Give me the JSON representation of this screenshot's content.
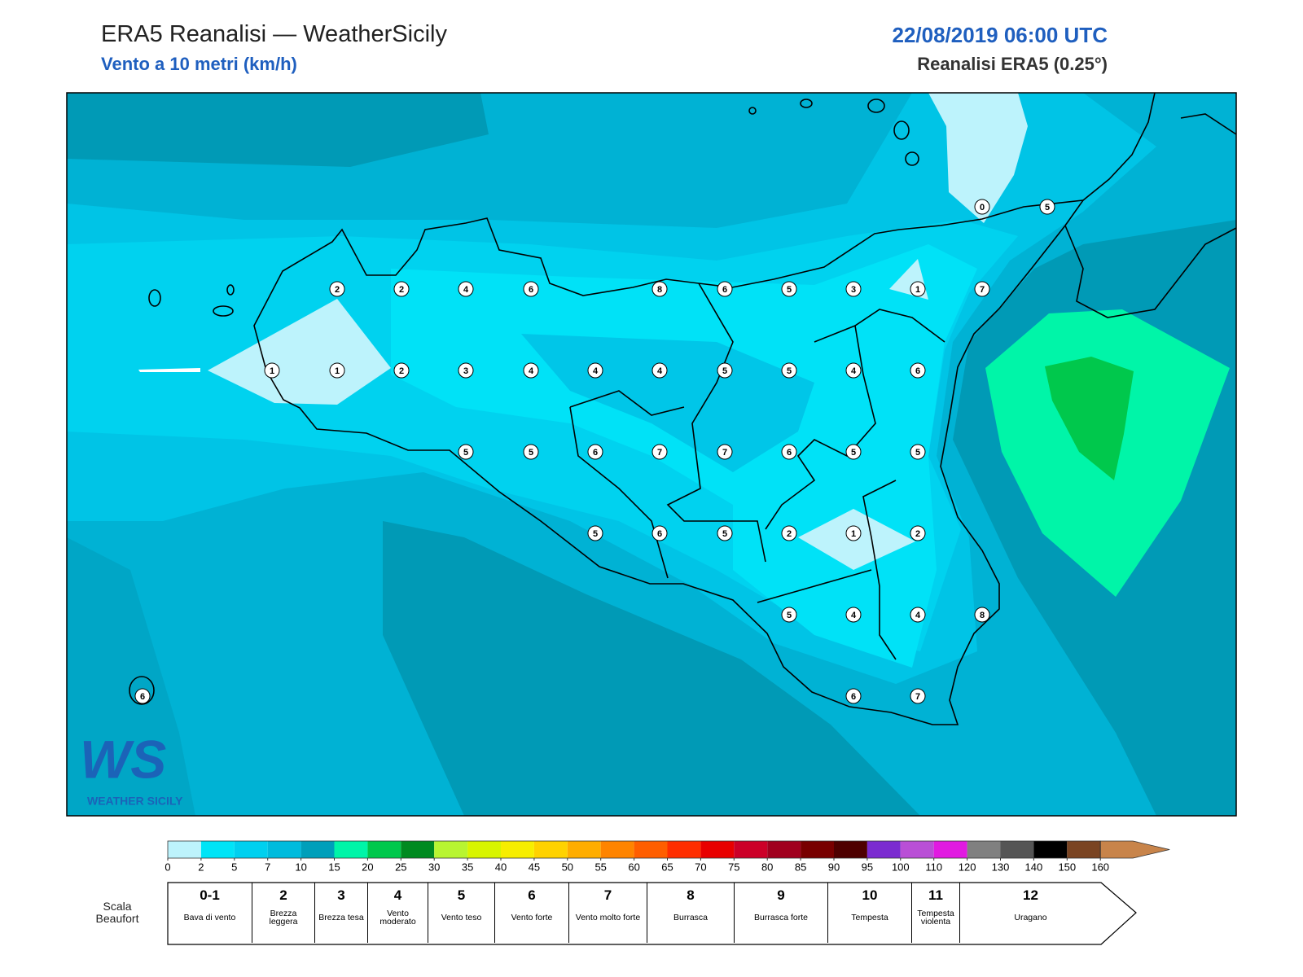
{
  "header": {
    "title": "ERA5 Reanalisi — WeatherSicily",
    "subtitle": "Vento a 10 metri (km/h)",
    "date": "22/08/2019 06:00 UTC",
    "source": "Reanalisi ERA5 (0.25°)"
  },
  "logo": {
    "mark": "WS",
    "name": "WEATHER SICILY"
  },
  "stations": [
    0,
    5,
    2,
    2,
    4,
    6,
    8,
    6,
    5,
    3,
    1,
    7,
    1,
    1,
    2,
    3,
    4,
    4,
    4,
    5,
    5,
    4,
    6,
    5,
    5,
    6,
    7,
    7,
    6,
    5,
    5,
    5,
    6,
    5,
    2,
    1,
    2,
    5,
    4,
    4,
    8,
    6,
    7,
    6
  ],
  "colorbar": {
    "ticks": [
      0,
      2,
      5,
      7,
      10,
      15,
      20,
      25,
      30,
      35,
      40,
      45,
      50,
      55,
      60,
      65,
      70,
      75,
      80,
      85,
      90,
      95,
      100,
      110,
      120,
      130,
      140,
      150,
      160
    ],
    "colors": [
      "#bdf3fc",
      "#00e4f7",
      "#00d0ef",
      "#00bbdd",
      "#009fba",
      "#00f5a8",
      "#00c84c",
      "#008a20",
      "#b8f531",
      "#d8f500",
      "#f7ee00",
      "#ffd200",
      "#ffad00",
      "#ff8400",
      "#ff5e00",
      "#ff2e00",
      "#e80000",
      "#cc0028",
      "#a0001e",
      "#780000",
      "#4e0000",
      "#7b2bd0",
      "#b94fd6",
      "#e11ae1",
      "#808080",
      "#555555",
      "#000000",
      "#7a4422"
    ],
    "over_color": "#c8844a"
  },
  "beaufort": {
    "label": "Scala Beaufort",
    "levels": [
      {
        "force": "0-1",
        "name": "Bava di vento"
      },
      {
        "force": "2",
        "name": "Brezza leggera"
      },
      {
        "force": "3",
        "name": "Brezza tesa"
      },
      {
        "force": "4",
        "name": "Vento moderato"
      },
      {
        "force": "5",
        "name": "Vento teso"
      },
      {
        "force": "6",
        "name": "Vento forte"
      },
      {
        "force": "7",
        "name": "Vento molto forte"
      },
      {
        "force": "8",
        "name": "Burrasca"
      },
      {
        "force": "9",
        "name": "Burrasca forte"
      },
      {
        "force": "10",
        "name": "Tempesta"
      },
      {
        "force": "11",
        "name": "Tempesta violenta"
      },
      {
        "force": "12",
        "name": "Uragano"
      }
    ]
  }
}
